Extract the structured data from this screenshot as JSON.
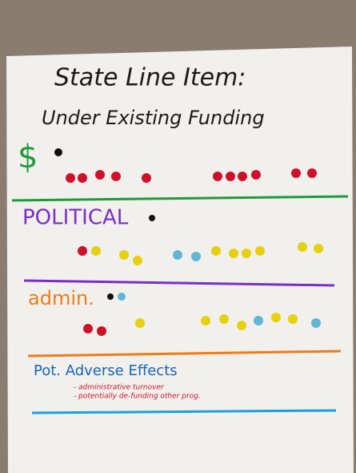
{
  "poster": {
    "title": "State Line Item:",
    "subtitle": "Under Existing Funding",
    "sections": [
      {
        "label": "$"
      },
      {
        "label": "POLITICAL"
      },
      {
        "label": "admin."
      },
      {
        "label": "Pot. Adverse Effects",
        "notes": [
          "- administrative turnover",
          "- potentially de-funding other prog."
        ]
      }
    ]
  }
}
